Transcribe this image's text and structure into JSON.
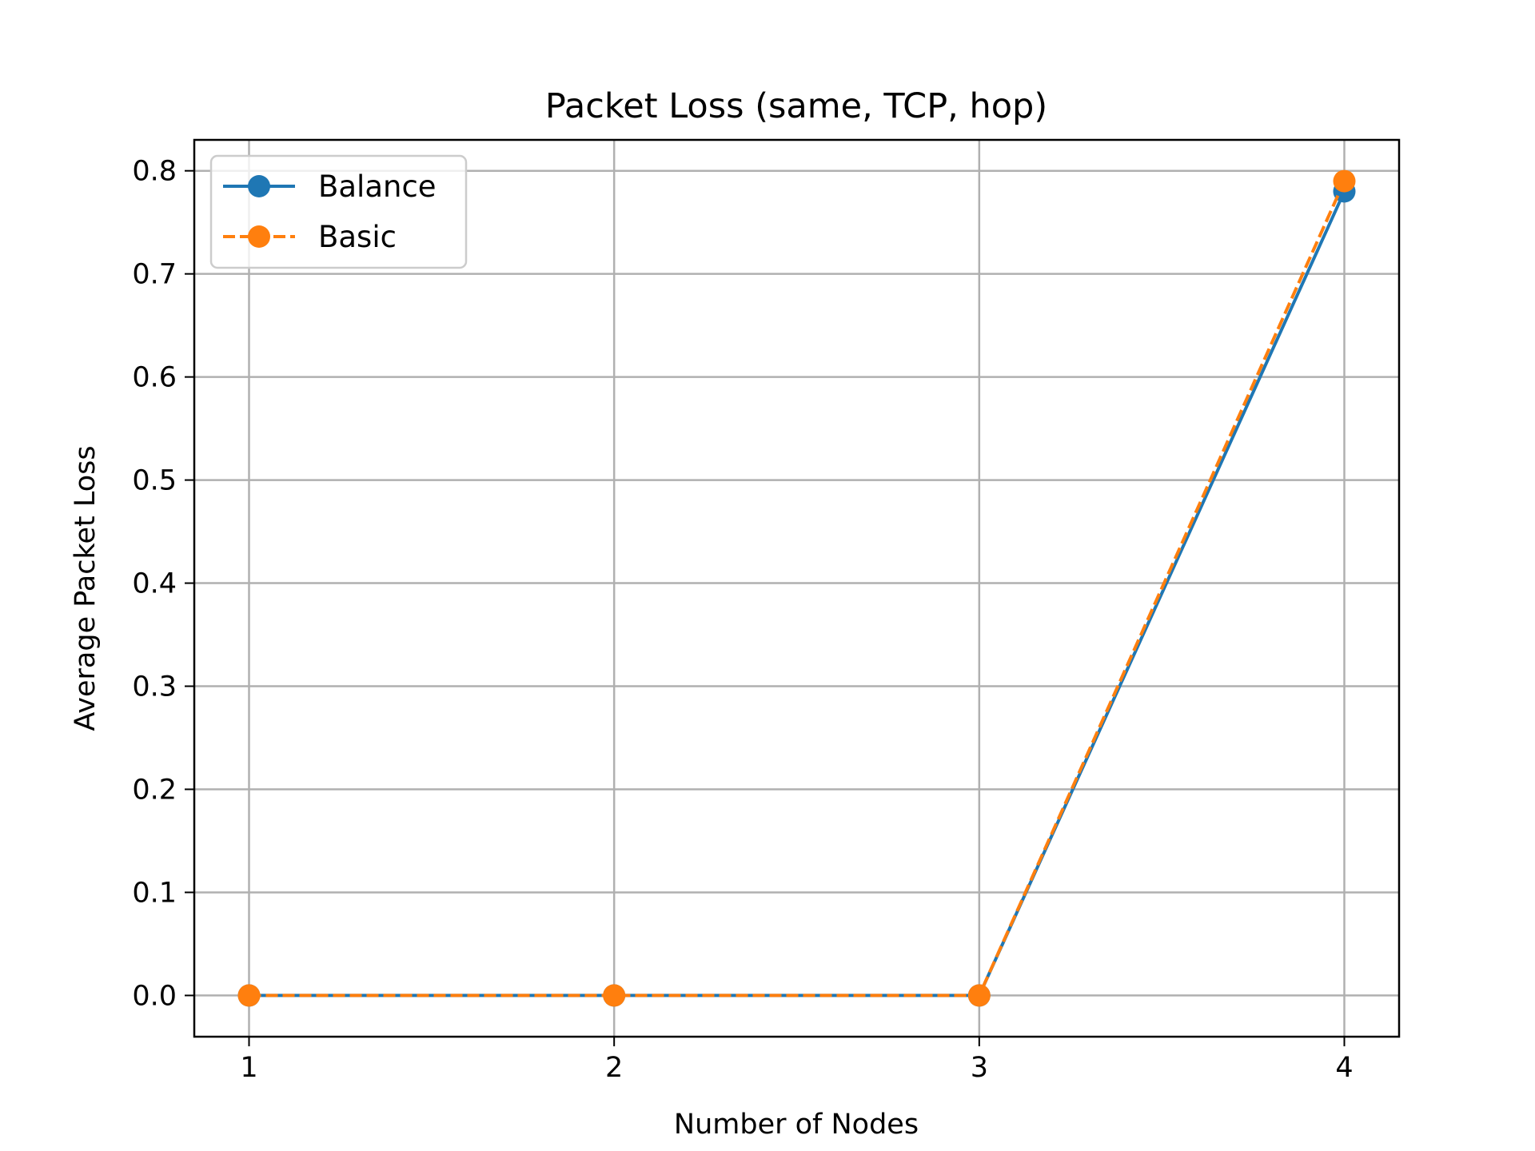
{
  "chart_data": {
    "type": "line",
    "title": "Packet Loss (same, TCP, hop)",
    "xlabel": "Number of Nodes",
    "ylabel": "Average Packet Loss",
    "x": [
      1,
      2,
      3,
      4
    ],
    "xticks": [
      "1",
      "2",
      "3",
      "4"
    ],
    "yticks": [
      "0.0",
      "0.1",
      "0.2",
      "0.3",
      "0.4",
      "0.5",
      "0.6",
      "0.7",
      "0.8"
    ],
    "xlim": [
      0.85,
      4.15
    ],
    "ylim": [
      -0.04,
      0.83
    ],
    "grid": true,
    "legend_position": "upper-left",
    "series": [
      {
        "name": "Balance",
        "values": [
          0.0,
          0.0,
          0.0,
          0.78
        ],
        "color": "#1f77b4",
        "linestyle": "solid",
        "marker": "circle"
      },
      {
        "name": "Basic",
        "values": [
          0.0,
          0.0,
          0.0,
          0.79
        ],
        "color": "#ff7f0e",
        "linestyle": "dashed",
        "marker": "circle"
      }
    ]
  }
}
